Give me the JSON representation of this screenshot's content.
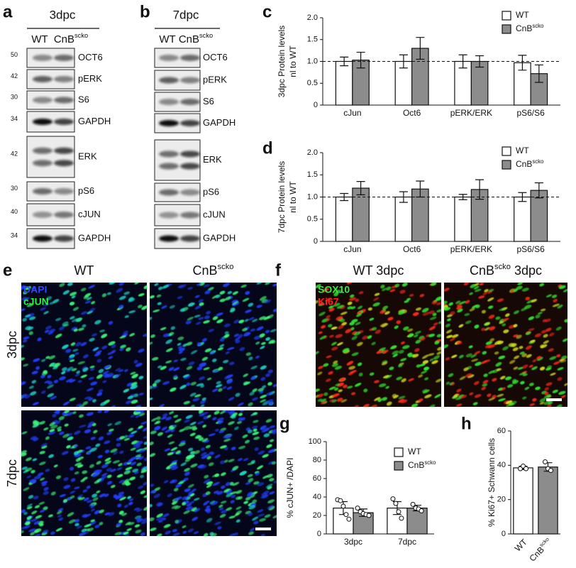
{
  "blots": [
    {
      "panel": "a",
      "title": "3dpc",
      "lanes": [
        "WT",
        [
          "CnB",
          {
            "sup": "scko"
          }
        ]
      ],
      "rows": [
        {
          "label": "OCT6",
          "mw": 50
        },
        {
          "label": "pERK",
          "mw": 42
        },
        {
          "label": "S6",
          "mw": 30
        },
        {
          "label": "GAPDH",
          "mw": 34
        },
        {
          "label": "ERK",
          "mw": 42
        },
        {
          "label": "pS6",
          "mw": 30
        },
        {
          "label": "cJUN",
          "mw": 40
        },
        {
          "label": "GAPDH",
          "mw": 34
        }
      ]
    },
    {
      "panel": "b",
      "title": "7dpc",
      "lanes": [
        "WT",
        [
          "CnB",
          {
            "sup": "scko"
          }
        ]
      ],
      "rows": [
        {
          "label": "OCT6"
        },
        {
          "label": "pERK"
        },
        {
          "label": "S6"
        },
        {
          "label": "GAPDH"
        },
        {
          "label": "ERK"
        },
        {
          "label": "pS6"
        },
        {
          "label": "cJUN"
        },
        {
          "label": "GAPDH"
        }
      ]
    }
  ],
  "chart_data": [
    {
      "type": "bar",
      "panel": "c",
      "ylabel": [
        "3dpc Protein levels",
        "nl to WT"
      ],
      "categories": [
        "cJun",
        "Oct6",
        "pERK/ERK",
        "pS6/S6"
      ],
      "series": [
        {
          "name": "WT",
          "color": "#ffffff",
          "values": [
            1.0,
            1.0,
            1.0,
            0.97
          ],
          "errors": [
            0.1,
            0.15,
            0.15,
            0.17
          ]
        },
        {
          "name": "CnB",
          "name_sup": "scko",
          "color": "#8c8c8c",
          "values": [
            1.03,
            1.3,
            1.0,
            0.72
          ],
          "errors": [
            0.18,
            0.25,
            0.13,
            0.2
          ]
        }
      ],
      "ylim": [
        0,
        2
      ],
      "yticks": [
        0,
        0.5,
        {
          "value": 1,
          "label": "1.0"
        },
        1.5,
        {
          "value": 2,
          "label": "2.0"
        }
      ],
      "reference_line": 1,
      "legend": "upper right"
    },
    {
      "type": "bar",
      "panel": "d",
      "ylabel": [
        "7dpc Protein levels",
        "nl to WT"
      ],
      "categories": [
        "cJun",
        "Oct6",
        "pERK/ERK",
        "pS6/S6"
      ],
      "series": [
        {
          "name": "WT",
          "color": "#ffffff",
          "values": [
            1.0,
            1.0,
            1.0,
            1.0
          ],
          "errors": [
            0.08,
            0.12,
            0.06,
            0.1
          ]
        },
        {
          "name": "CnB",
          "name_sup": "scko",
          "color": "#8c8c8c",
          "values": [
            1.2,
            1.18,
            1.17,
            1.15
          ],
          "errors": [
            0.15,
            0.18,
            0.22,
            0.17
          ]
        }
      ],
      "ylim": [
        0,
        2
      ],
      "yticks": [
        0,
        0.5,
        {
          "value": 1,
          "label": "1.0"
        },
        1.5,
        {
          "value": 2,
          "label": "2.0"
        }
      ],
      "reference_line": 1,
      "legend": "upper right"
    },
    {
      "type": "bar",
      "panel": "g",
      "ylabel": "% cJUN+ /DAPI",
      "categories": [
        "3dpc",
        "7dpc"
      ],
      "series": [
        {
          "name": "WT",
          "color": "#ffffff",
          "values": [
            28,
            28
          ],
          "errors": [
            7,
            7
          ],
          "points": [
            [
              37,
              36,
              30,
              21,
              16
            ],
            [
              38,
              33,
              24,
              17
            ]
          ]
        },
        {
          "name": "CnB",
          "name_sup": "scko",
          "color": "#8c8c8c",
          "values": [
            23,
            28
          ],
          "errors": [
            4,
            3
          ],
          "points": [
            [
              28,
              24,
              22,
              21,
              20
            ],
            [
              32,
              28,
              27,
              25
            ]
          ]
        }
      ],
      "ylim": [
        0,
        100
      ],
      "yticks": [
        0,
        20,
        40,
        60,
        80,
        100
      ],
      "legend": "upper right"
    },
    {
      "type": "bar",
      "panel": "h",
      "ylabel": "% Ki67+ Schwann cells",
      "categories": [
        "WT",
        [
          "CnB",
          {
            "sup": "scko"
          }
        ]
      ],
      "values": [
        38.5,
        39
      ],
      "errors": [
        1,
        2.5
      ],
      "points": [
        [
          38,
          39.5,
          38
        ],
        [
          42,
          38,
          37
        ]
      ],
      "colors": [
        "#ffffff",
        "#8c8c8c"
      ],
      "ylim": [
        0,
        60
      ],
      "yticks": [
        0,
        20,
        40,
        60
      ]
    }
  ],
  "images": [
    {
      "panel": "e",
      "columns": [
        "WT",
        [
          "CnB",
          {
            "sup": "scko"
          }
        ]
      ],
      "rows": [
        "3dpc",
        "7dpc"
      ],
      "stains": [
        {
          "name": "DAPI",
          "color": "#2b4cff"
        },
        {
          "name": "cJUN",
          "color": "#33ee44"
        }
      ]
    },
    {
      "panel": "f",
      "columns": [
        "WT 3dpc",
        [
          "CnB",
          {
            "sup": "scko"
          },
          " 3dpc"
        ]
      ],
      "stains": [
        {
          "name": "SOX10",
          "color": "#33ee44"
        },
        {
          "name": "Ki67",
          "color": "#ff2222"
        }
      ]
    }
  ]
}
